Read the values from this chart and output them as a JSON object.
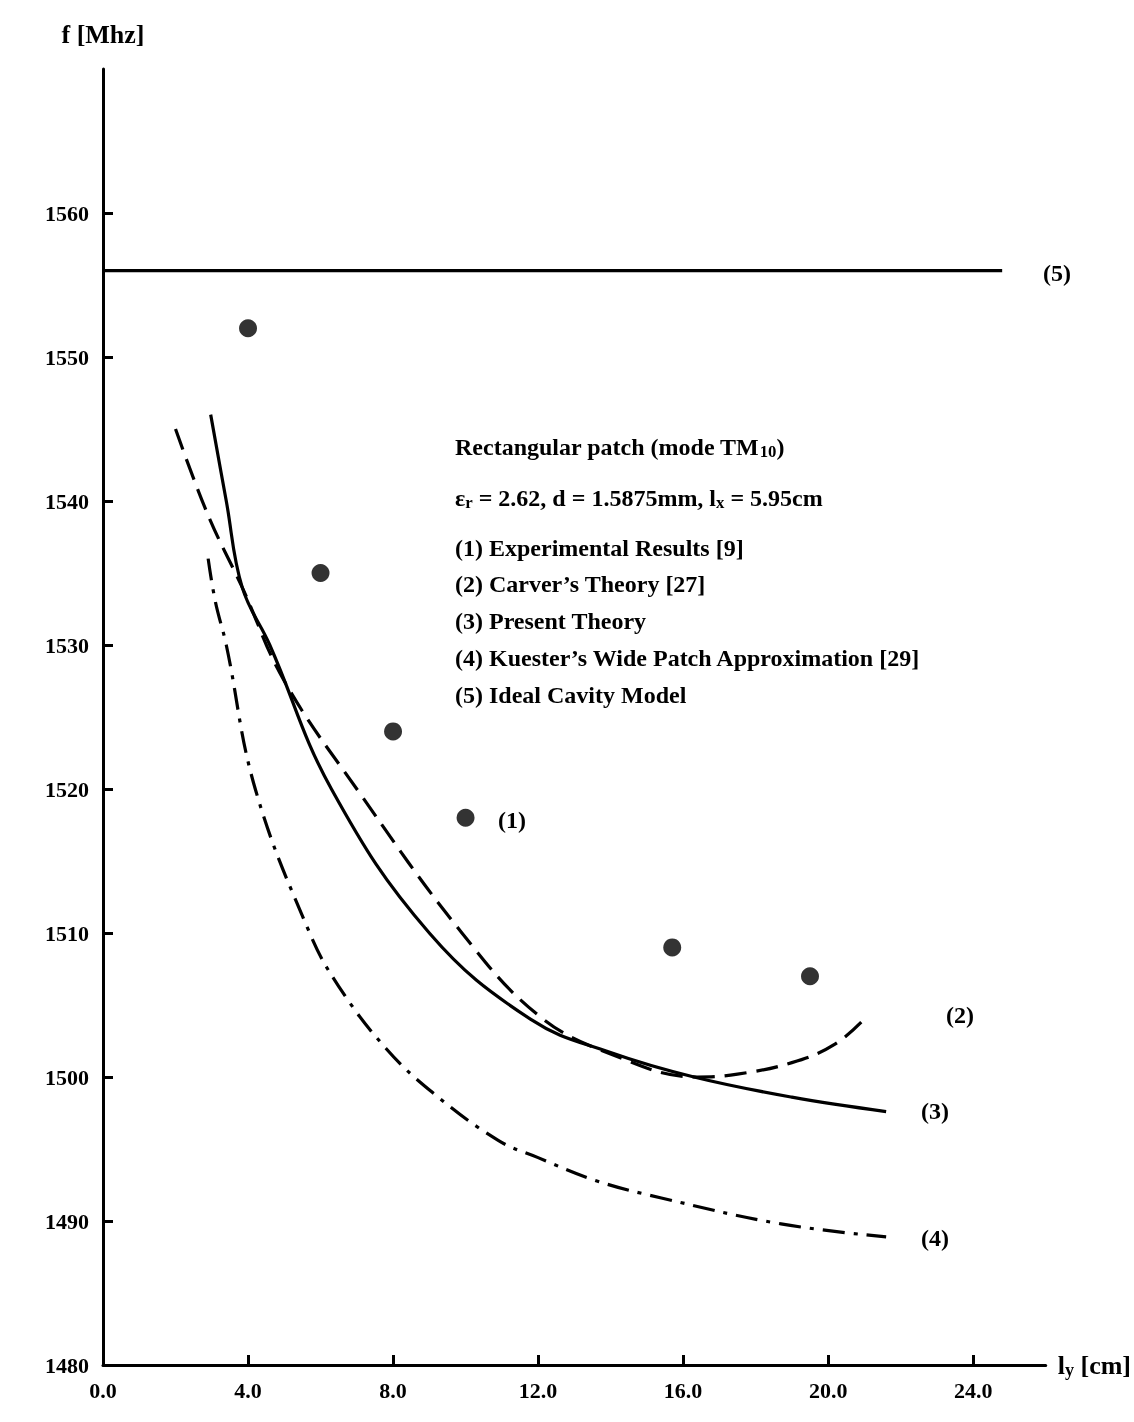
{
  "chart_data": {
    "type": "line",
    "xlabel": "l$_{y}$ [cm]",
    "ylabel": "f [Mhz]",
    "xlim": [
      0,
      26
    ],
    "xticks": [
      {
        "value": 0,
        "label": "0.0"
      },
      {
        "value": 4,
        "label": "4.0"
      },
      {
        "value": 8,
        "label": "8.0"
      },
      {
        "value": 12,
        "label": "12.0"
      },
      {
        "value": 16,
        "label": "16.0"
      },
      {
        "value": 20,
        "label": "20.0"
      },
      {
        "value": 24,
        "label": "24.0"
      }
    ],
    "ylim": [
      1480,
      1570
    ],
    "yticks": [
      1480,
      1490,
      1500,
      1510,
      1520,
      1530,
      1540,
      1550,
      1560
    ],
    "grid": false,
    "series": [
      {
        "type": "scatter",
        "marker": "circle",
        "color": "#000000",
        "x": [
          4,
          6,
          8,
          10,
          15.7,
          19.5
        ],
        "values": [
          1552,
          1535,
          1524,
          1518,
          1509,
          1507
        ]
      },
      {
        "line_style": "dashed",
        "marker": "none",
        "color": "#000000",
        "x": [
          2.0,
          2.9,
          3.84,
          5.0,
          7.0,
          9.9,
          12.0,
          14.0,
          16.4,
          17.5,
          19.0,
          20.2,
          21.1
        ],
        "values": [
          1545,
          1539,
          1534,
          1527.5,
          1520,
          1510,
          1504.3,
          1501.6,
          1500,
          1500.2,
          1501,
          1502.3,
          1504.3
        ]
      },
      {
        "line_style": "solid",
        "marker": "none",
        "color": "#000000",
        "x": [
          2.97,
          3.4,
          3.84,
          4.6,
          6.3,
          9.0,
          11.8,
          14.0,
          16.3,
          19.0,
          21.6
        ],
        "values": [
          1546,
          1540,
          1534,
          1530,
          1520,
          1510,
          1504,
          1501.7,
          1500,
          1498.6,
          1497.6
        ]
      },
      {
        "line_style": "dashdot",
        "marker": "none",
        "color": "#000000",
        "x": [
          2.9,
          3.1,
          3.4,
          4.2,
          5.7,
          6.5,
          7.8,
          9.1,
          10.9,
          12.0,
          13.6,
          15.4,
          18.7,
          21.6
        ],
        "values": [
          1536,
          1533,
          1530,
          1520,
          1510,
          1506.3,
          1502,
          1498.9,
          1495.6,
          1494.4,
          1492.8,
          1491.6,
          1489.8,
          1488.9
        ]
      },
      {
        "line_style": "solid",
        "marker": "none",
        "color": "#000000",
        "x": [
          0,
          24.8
        ],
        "values": [
          1556,
          1556
        ]
      }
    ],
    "annotations": [
      "Rectangular patch (mode TM$_{10}$)",
      "ε$_{r}$ = 2.62, d = 1.5875mm, l$_{x}$ = 5.95cm",
      "(1) Experimental Results [9]",
      "(2) Carver’s Theory [27]",
      "(3) Present Theory",
      "(4) Kuester’s Wide Patch Approximation [29]",
      "(5) Ideal Cavity Model",
      "(1)",
      "(2)",
      "(3)",
      "(4)",
      "(5)"
    ]
  }
}
